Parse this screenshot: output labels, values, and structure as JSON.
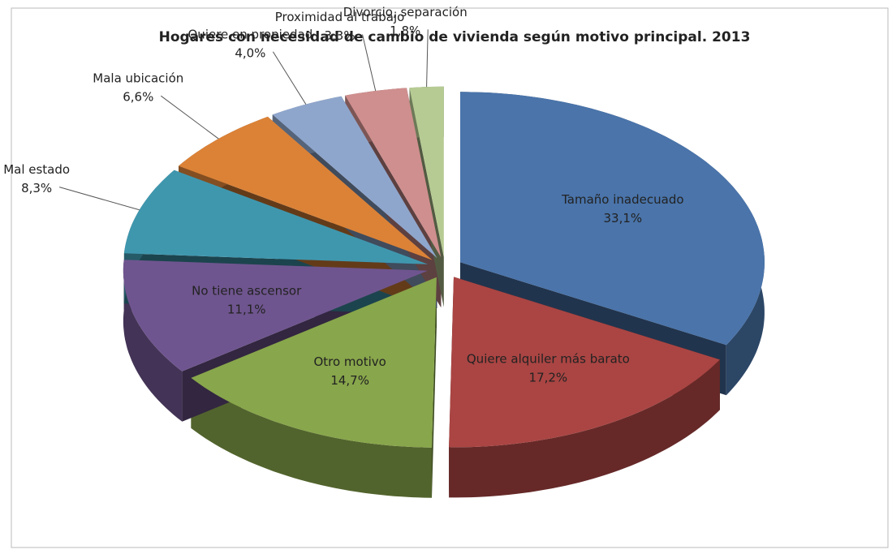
{
  "chart_data": {
    "type": "pie",
    "title": "Hogares con necesidad de cambio de vivienda según motivo principal. 2013",
    "categories": [
      "Tamaño inadecuado",
      "Quiere alquiler más barato",
      "Otro motivo",
      "No tiene ascensor",
      "Mal estado",
      "Mala ubicación",
      "Quiere en propiedad",
      "Proximidad al trabajo",
      "Divorcio, separación"
    ],
    "values": [
      33.1,
      17.2,
      14.7,
      11.1,
      8.3,
      6.6,
      4.0,
      3.3,
      1.8
    ],
    "value_labels": [
      "33,1%",
      "17,2%",
      "14,7%",
      "11,1%",
      "8,3%",
      "6,6%",
      "4,0%",
      "3,3%",
      "1,8%"
    ],
    "colors": [
      "#4a74aa",
      "#aa4543",
      "#88a64b",
      "#6f558f",
      "#3f97ae",
      "#db8237",
      "#8fa6cc",
      "#cf8f8e",
      "#b6cb93"
    ]
  }
}
